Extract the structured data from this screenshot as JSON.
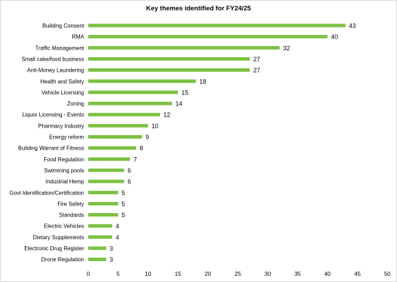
{
  "chart_data": {
    "type": "bar",
    "orientation": "horizontal",
    "title": "Key themes identified for FY24/25",
    "categories": [
      "Building Consent",
      "RMA",
      "Traffic Management",
      "Small cake/food business",
      "Anti-Money Laundering",
      "Health and Safety",
      "Vehicle Licensing",
      "Zoning",
      "Liquor Licensing - Events",
      "Pharmacy Industry",
      "Energy reform",
      "Building Warrant of Fitness",
      "Food Regulation",
      "Swimming pools",
      "Industrial Hemp",
      "Govt Identification/Certification",
      "Fire Safety",
      "Standards",
      "Electric Vehicles",
      "Dietary Supplements",
      "Electronic Drug Register",
      "Drone Regulation"
    ],
    "values": [
      43,
      40,
      32,
      27,
      27,
      18,
      15,
      14,
      12,
      10,
      9,
      8,
      7,
      6,
      6,
      5,
      5,
      5,
      4,
      4,
      3,
      3
    ],
    "xlim": [
      0,
      50
    ],
    "xticks": [
      0,
      5,
      10,
      15,
      20,
      25,
      30,
      35,
      40,
      45,
      50
    ],
    "bar_color": "#7cc142",
    "grid": false,
    "legend": "none",
    "data_labels": true
  }
}
